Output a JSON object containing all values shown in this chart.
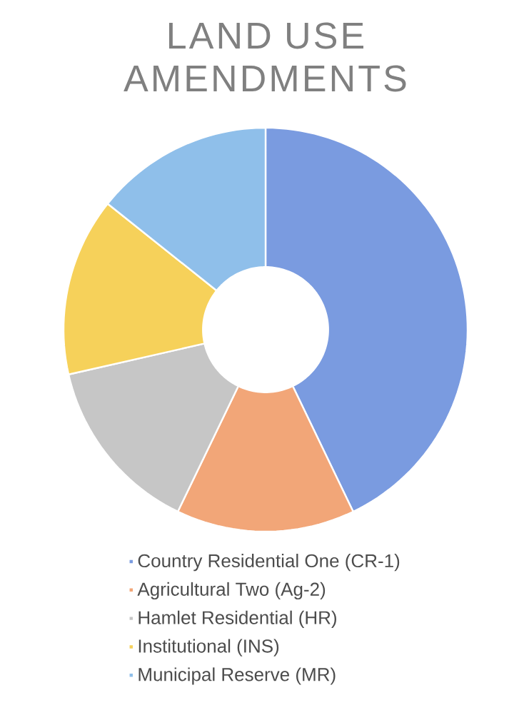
{
  "chart_data": {
    "type": "donut",
    "title": "LAND USE AMENDMENTS",
    "categories": [
      "Country Residential One (CR-1)",
      "Agricultural Two (Ag-2)",
      "Hamlet Residential (HR)",
      "Institutional (INS)",
      "Municipal Reserve (MR)"
    ],
    "values": [
      42.86,
      14.29,
      14.29,
      14.28,
      14.28
    ],
    "colors": [
      "#7a9be0",
      "#f2a678",
      "#c6c6c6",
      "#f6d15a",
      "#8fbfea"
    ],
    "legend": "bottom"
  }
}
